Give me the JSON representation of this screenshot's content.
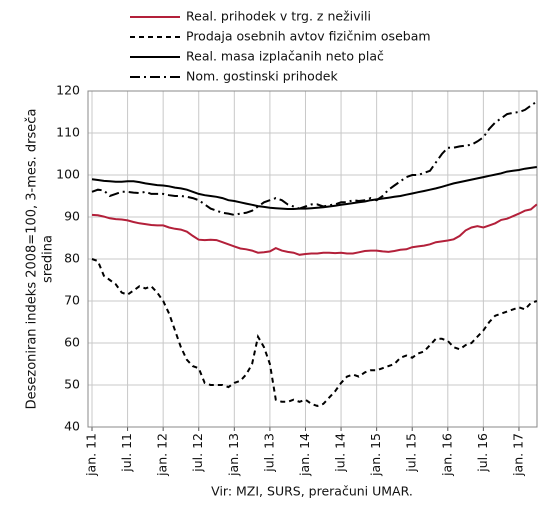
{
  "chart_data": {
    "type": "line",
    "y_label": [
      "Desezoniran indeks 2008=100, 3-mes. drseča",
      "sredina"
    ],
    "source": "Vir: MZI, SURS, preračuni UMAR.",
    "ylim": [
      40,
      120
    ],
    "yticks": [
      40,
      50,
      60,
      70,
      80,
      90,
      100,
      110,
      120
    ],
    "grid": true,
    "categories": [
      "jan. 11",
      null,
      null,
      null,
      null,
      null,
      "jul. 11",
      null,
      null,
      null,
      null,
      null,
      "jan. 12",
      null,
      null,
      null,
      null,
      null,
      "jul. 12",
      null,
      null,
      null,
      null,
      null,
      "jan. 13",
      null,
      null,
      null,
      null,
      null,
      "jul. 13",
      null,
      null,
      null,
      null,
      null,
      "jan. 14",
      null,
      null,
      null,
      null,
      null,
      "jul. 14",
      null,
      null,
      null,
      null,
      null,
      "jan. 15",
      null,
      null,
      null,
      null,
      null,
      "jul. 15",
      null,
      null,
      null,
      null,
      null,
      "jan. 16",
      null,
      null,
      null,
      null,
      null,
      "jul. 16",
      null,
      null,
      null,
      null,
      null,
      "jan. 17",
      null,
      null,
      null
    ],
    "series": [
      {
        "name": "Real. prihodek v trg. z neživili",
        "color": "#b3203a",
        "dash": "solid",
        "values": [
          90.5,
          90.4,
          90.1,
          89.7,
          89.5,
          89.4,
          89.2,
          88.8,
          88.5,
          88.3,
          88.1,
          88.0,
          88.0,
          87.5,
          87.2,
          87.0,
          86.5,
          85.5,
          84.6,
          84.5,
          84.6,
          84.5,
          84.0,
          83.5,
          83.0,
          82.5,
          82.3,
          82.0,
          81.5,
          81.6,
          81.8,
          82.6,
          82.0,
          81.7,
          81.5,
          81.0,
          81.2,
          81.3,
          81.3,
          81.5,
          81.5,
          81.4,
          81.5,
          81.3,
          81.3,
          81.6,
          81.9,
          82.0,
          82.0,
          81.8,
          81.7,
          81.9,
          82.2,
          82.3,
          82.8,
          83.0,
          83.2,
          83.5,
          84.0,
          84.2,
          84.4,
          84.7,
          85.5,
          86.8,
          87.5,
          87.8,
          87.5,
          88.0,
          88.5,
          89.3,
          89.6,
          90.2,
          90.8,
          91.5,
          91.8,
          93.0
        ]
      },
      {
        "name": "Prodaja osebnih avtov fizičnim osebam",
        "color": "#000000",
        "dash": "dashed",
        "values": [
          80.0,
          79.5,
          76.0,
          75.0,
          74.0,
          72.0,
          71.5,
          72.5,
          73.5,
          73.0,
          73.5,
          72.0,
          70.0,
          67.0,
          63.0,
          59.0,
          56.0,
          54.5,
          54.0,
          50.5,
          50.0,
          50.0,
          50.0,
          49.5,
          50.5,
          51.0,
          52.5,
          55.0,
          61.5,
          59.0,
          55.0,
          46.5,
          46.0,
          46.0,
          46.5,
          46.0,
          46.5,
          45.5,
          45.0,
          45.5,
          47.0,
          48.5,
          50.5,
          52.0,
          52.5,
          52.0,
          53.0,
          53.5,
          53.5,
          54.0,
          54.5,
          55.0,
          56.5,
          57.0,
          56.5,
          57.5,
          58.0,
          59.5,
          61.0,
          61.0,
          60.5,
          59.0,
          58.5,
          59.5,
          60.0,
          61.5,
          63.0,
          65.0,
          66.5,
          67.0,
          67.5,
          68.0,
          68.5,
          68.0,
          69.5,
          70.0
        ]
      },
      {
        "name": "Real. masa izplačanih neto plač",
        "color": "#000000",
        "dash": "solid",
        "values": [
          99.0,
          98.8,
          98.6,
          98.5,
          98.4,
          98.4,
          98.5,
          98.5,
          98.3,
          98.0,
          97.8,
          97.6,
          97.5,
          97.3,
          97.0,
          96.8,
          96.5,
          96.0,
          95.5,
          95.2,
          95.0,
          94.8,
          94.5,
          94.0,
          93.8,
          93.5,
          93.2,
          92.9,
          92.6,
          92.4,
          92.2,
          92.1,
          92.0,
          91.9,
          91.9,
          92.0,
          92.0,
          92.1,
          92.2,
          92.3,
          92.5,
          92.7,
          92.9,
          93.1,
          93.3,
          93.5,
          93.7,
          94.0,
          94.2,
          94.4,
          94.6,
          94.8,
          95.0,
          95.3,
          95.6,
          95.9,
          96.2,
          96.5,
          96.8,
          97.2,
          97.6,
          98.0,
          98.3,
          98.6,
          98.9,
          99.2,
          99.5,
          99.8,
          100.1,
          100.4,
          100.8,
          101.0,
          101.2,
          101.5,
          101.7,
          101.9
        ]
      },
      {
        "name": "Nom. gostinski prihodek",
        "color": "#000000",
        "dash": "dashdot",
        "values": [
          96.0,
          96.5,
          96.3,
          95.0,
          95.5,
          96.0,
          96.0,
          95.8,
          95.7,
          96.0,
          95.5,
          95.5,
          95.5,
          95.2,
          95.0,
          95.0,
          94.8,
          94.5,
          94.0,
          93.0,
          92.0,
          91.5,
          91.0,
          90.8,
          90.5,
          90.8,
          91.0,
          91.5,
          92.5,
          93.5,
          94.0,
          94.5,
          94.0,
          93.0,
          92.5,
          92.0,
          92.5,
          93.0,
          93.0,
          92.5,
          92.8,
          93.0,
          93.5,
          93.5,
          94.0,
          93.8,
          94.0,
          94.5,
          94.0,
          95.0,
          96.5,
          97.5,
          98.5,
          99.5,
          100.0,
          100.0,
          100.5,
          101.0,
          103.0,
          105.0,
          106.5,
          106.5,
          106.8,
          107.0,
          107.2,
          108.0,
          109.0,
          111.0,
          112.5,
          113.5,
          114.5,
          114.8,
          115.0,
          115.5,
          116.5,
          117.5
        ]
      }
    ]
  }
}
